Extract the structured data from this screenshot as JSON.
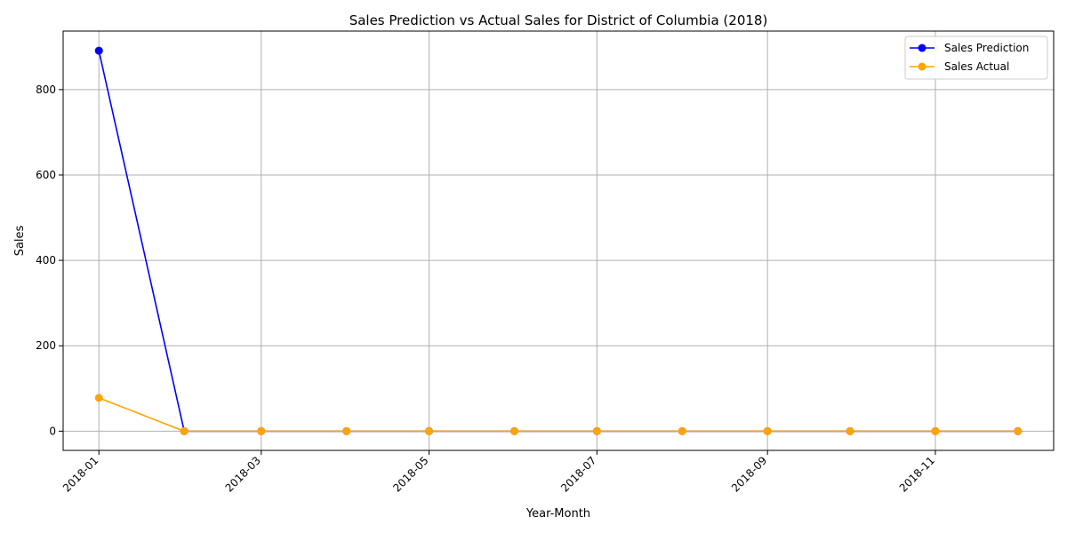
{
  "chart_data": {
    "type": "line",
    "title": "Sales Prediction vs Actual Sales for District of Columbia (2018)",
    "xlabel": "Year-Month",
    "ylabel": "Sales",
    "x": [
      "2018-01-01",
      "2018-02-01",
      "2018-03-01",
      "2018-04-01",
      "2018-05-01",
      "2018-06-01",
      "2018-07-01",
      "2018-08-01",
      "2018-09-01",
      "2018-10-01",
      "2018-11-01",
      "2018-12-01"
    ],
    "xticks": [
      "2018-01",
      "2018-03",
      "2018-05",
      "2018-07",
      "2018-09",
      "2018-11"
    ],
    "yticks": [
      0,
      200,
      400,
      600,
      800
    ],
    "xlim": [
      "2017-12-19",
      "2018-12-14"
    ],
    "ylim": [
      -45,
      937
    ],
    "grid": true,
    "legend_position": "top-right",
    "series": [
      {
        "name": "Sales Prediction",
        "color": "#0000ff",
        "values": [
          891,
          0,
          0,
          0,
          0,
          0,
          0,
          0,
          0,
          0,
          0,
          0
        ]
      },
      {
        "name": "Sales Actual",
        "color": "#ffa500",
        "values": [
          78,
          0,
          0,
          0,
          0,
          0,
          0,
          0,
          0,
          0,
          0,
          0
        ]
      }
    ]
  }
}
